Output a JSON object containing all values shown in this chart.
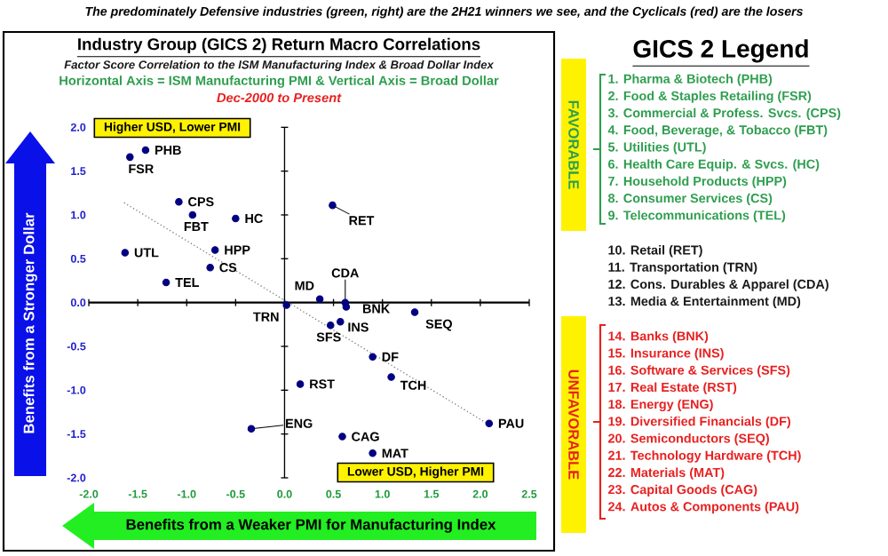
{
  "chart_data": [
    {
      "type": "scatter",
      "title": "The predominately Defensive industries (green, right) are the 2H21 winners we see, and the Cyclicals (red) are the losers",
      "subtitle": "Industry Group (GICS 2) Return Macro Correlations",
      "xlabel": "Benefits from a Weaker PMI for Manufacturing Index",
      "ylabel": "Benefits from a Stronger Dollar",
      "annotations": [
        "Factor Score Correlation to the ISM Manufacturing Index & Broad Dollar Index",
        "Horizontal Axis = ISM Manufacturing PMI & Vertical Axis = Broad Dollar",
        "Dec-2000 to Present",
        "Higher USD, Lower PMI",
        "Lower USD, Higher PMI",
        {
          "text": "PHB",
          "x": -1.42,
          "y": 1.74
        },
        {
          "text": "FSR",
          "x": -1.58,
          "y": 1.66
        },
        {
          "text": "CPS",
          "x": -1.08,
          "y": 1.15
        },
        {
          "text": "FBT",
          "x": -0.94,
          "y": 1.0
        },
        {
          "text": "HC",
          "x": -0.5,
          "y": 0.96
        },
        {
          "text": "UTL",
          "x": -1.63,
          "y": 0.57
        },
        {
          "text": "HPP",
          "x": -0.71,
          "y": 0.6
        },
        {
          "text": "CS",
          "x": -0.76,
          "y": 0.4
        },
        {
          "text": "TEL",
          "x": -1.21,
          "y": 0.23
        },
        {
          "text": "TRN",
          "x": 0.02,
          "y": -0.03
        },
        {
          "text": "MD",
          "x": 0.36,
          "y": 0.04
        },
        {
          "text": "RET",
          "x": 0.49,
          "y": 1.11
        },
        {
          "text": "CDA",
          "x": 0.62,
          "y": 0.0
        },
        {
          "text": "BNK",
          "x": 0.63,
          "y": -0.05
        },
        {
          "text": "SEQ",
          "x": 1.33,
          "y": -0.11
        },
        {
          "text": "INS",
          "x": 0.57,
          "y": -0.22
        },
        {
          "text": "SFS",
          "x": 0.47,
          "y": -0.26
        },
        {
          "text": "DF",
          "x": 0.9,
          "y": -0.62
        },
        {
          "text": "TCH",
          "x": 1.09,
          "y": -0.85
        },
        {
          "text": "RST",
          "x": 0.16,
          "y": -0.93
        },
        {
          "text": "ENG",
          "x": -0.34,
          "y": -1.44
        },
        {
          "text": "CAG",
          "x": 0.59,
          "y": -1.53
        },
        {
          "text": "MAT",
          "x": 0.9,
          "y": -1.72
        },
        {
          "text": "PAU",
          "x": 2.09,
          "y": -1.38
        }
      ],
      "xlim": [
        -2,
        2.5
      ],
      "ylim": [
        -2,
        2
      ],
      "xticks": [
        {
          "value": -2,
          "label": "-2.0"
        },
        {
          "value": -1.5,
          "label": "-1.5"
        },
        {
          "value": -1,
          "label": "-1.0"
        },
        {
          "value": -0.5,
          "label": "-0.5"
        },
        {
          "value": 0,
          "label": "0.0"
        },
        {
          "value": 0.5,
          "label": "0.5"
        },
        {
          "value": 1,
          "label": "1.0"
        },
        {
          "value": 1.5,
          "label": "1.5"
        },
        {
          "value": 2,
          "label": "2.0"
        },
        {
          "value": 2.5,
          "label": "2.5"
        }
      ],
      "yticks": [
        {
          "value": -2,
          "label": "-2.0"
        },
        {
          "value": -1.5,
          "label": "-1.5"
        },
        {
          "value": -1,
          "label": "-1.0"
        },
        {
          "value": -0.5,
          "label": "-0.5"
        },
        {
          "value": 0,
          "label": "0.0"
        },
        {
          "value": 0.5,
          "label": "0.5"
        },
        {
          "value": 1,
          "label": "1.0"
        },
        {
          "value": 1.5,
          "label": "1.5"
        },
        {
          "value": 2,
          "label": "2.0"
        }
      ],
      "series": [
        {
          "color": "#000080",
          "marker": "circle",
          "x": [
            -1.42,
            -1.58,
            -1.08,
            -0.94,
            -0.5,
            -1.63,
            -0.71,
            -0.76,
            -1.21,
            0.02,
            0.36,
            0.49,
            0.62,
            0.63,
            1.33,
            0.57,
            0.47,
            0.9,
            1.09,
            0.16,
            -0.34,
            0.59,
            0.9,
            2.09
          ],
          "values": [
            1.74,
            1.66,
            1.15,
            1.0,
            0.96,
            0.57,
            0.6,
            0.4,
            0.23,
            -0.03,
            0.04,
            1.11,
            0.0,
            -0.05,
            -0.11,
            -0.22,
            -0.26,
            -0.62,
            -0.85,
            -0.93,
            -1.44,
            -1.53,
            -1.72,
            -1.38
          ]
        },
        {
          "type": "line",
          "color": "#808080",
          "marker": "none",
          "line_style": "dotted",
          "x": [
            -1.64,
            2.07
          ],
          "values": [
            1.14,
            -1.38
          ]
        }
      ]
    },
    {
      "type": "other",
      "title": "GICS 2 Legend",
      "annotations": [
        "FAVORABLE",
        "UNFAVORABLE"
      ],
      "categories": [
        "1. Pharma & Biotech (PHB)",
        "2. Food & Staples Retailing (FSR)",
        "3. Commercial & Profess. Svcs. (CPS)",
        "4. Food, Beverage, & Tobacco (FBT)",
        "5. Utilities (UTL)",
        "6. Health Care Equip. & Svcs. (HC)",
        "7. Household Products (HPP)",
        "8. Consumer Services (CS)",
        "9. Telecommunications (TEL)",
        "10. Retail (RET)",
        "11. Transportation (TRN)",
        "12. Cons. Durables & Apparel (CDA)",
        "13. Media & Entertainment (MD)",
        "14. Banks (BNK)",
        "15. Insurance (INS)",
        "16. Software & Services (SFS)",
        "17. Real Estate (RST)",
        "18. Energy (ENG)",
        "19. Diversified Financials (DF)",
        "20. Semiconductors (SEQ)",
        "21. Technology Hardware (TCH)",
        "22. Materials (MAT)",
        "23. Capital Goods (CAG)",
        "24. Autos & Components (PAU)"
      ],
      "colors": [
        "#2e9e4f",
        "#2e9e4f",
        "#2e9e4f",
        "#2e9e4f",
        "#2e9e4f",
        "#2e9e4f",
        "#2e9e4f",
        "#2e9e4f",
        "#2e9e4f",
        "#1a1a1a",
        "#1a1a1a",
        "#1a1a1a",
        "#1a1a1a",
        "#e82020",
        "#e82020",
        "#e82020",
        "#e82020",
        "#e82020",
        "#e82020",
        "#e82020",
        "#e82020",
        "#e82020",
        "#e82020",
        "#e82020"
      ]
    }
  ]
}
